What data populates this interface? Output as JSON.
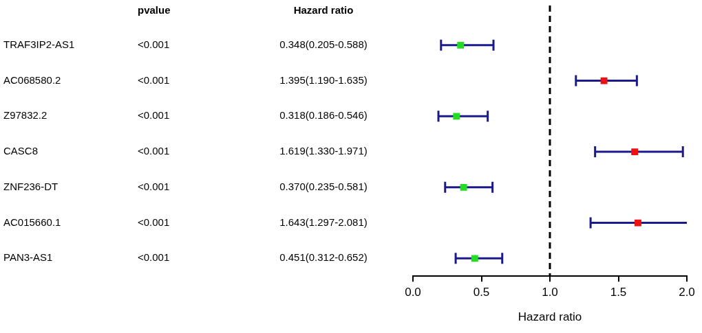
{
  "chart_data": {
    "type": "forest",
    "column_headers": [
      "pvalue",
      "Hazard ratio"
    ],
    "categories": [
      "TRAF3IP2-AS1",
      "AC068580.2",
      "Z97832.2",
      "CASC8",
      "ZNF236-DT",
      "AC015660.1",
      "PAN3-AS1"
    ],
    "pvalues": [
      "<0.001",
      "<0.001",
      "<0.001",
      "<0.001",
      "<0.001",
      "<0.001",
      "<0.001"
    ],
    "values": [
      0.348,
      1.395,
      0.318,
      1.619,
      0.37,
      1.643,
      0.451
    ],
    "lower": [
      0.205,
      1.19,
      0.186,
      1.33,
      0.235,
      1.297,
      0.312
    ],
    "upper": [
      0.588,
      1.635,
      0.546,
      1.971,
      0.581,
      2.081,
      0.652
    ],
    "value_labels": [
      "0.348(0.205-0.588)",
      "1.395(1.190-1.635)",
      "0.318(0.186-0.546)",
      "1.619(1.330-1.971)",
      "0.370(0.235-0.581)",
      "1.643(1.297-2.081)",
      "0.451(0.312-0.652)"
    ],
    "colors": [
      "#22dd22",
      "#ee1111",
      "#22dd22",
      "#ee1111",
      "#22dd22",
      "#ee1111",
      "#22dd22"
    ],
    "reference_line": 1,
    "x_label": "Hazard ratio",
    "xlim": [
      0,
      2
    ],
    "xticks": [
      {
        "value": 0,
        "label": "0.0"
      },
      {
        "value": 0.5,
        "label": "0.5"
      },
      {
        "value": 1,
        "label": "1.0"
      },
      {
        "value": 1.5,
        "label": "1.5"
      },
      {
        "value": 2,
        "label": "2.0"
      }
    ]
  }
}
